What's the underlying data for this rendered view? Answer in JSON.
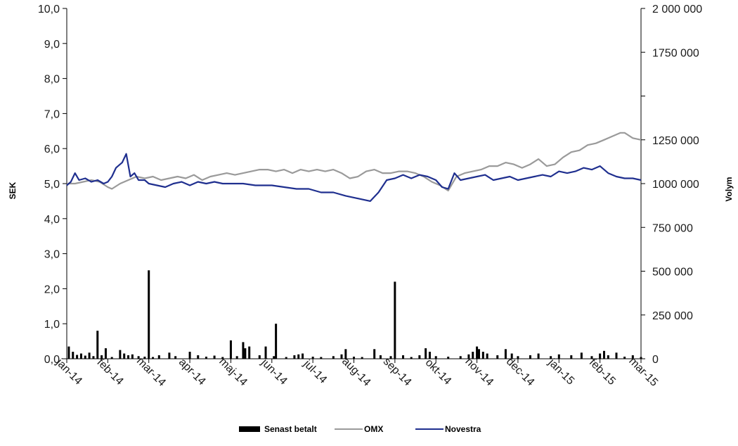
{
  "chart_data": {
    "type": "line",
    "title": "",
    "ylabel": "SEK",
    "y2label": "Volym",
    "ylim": [
      0,
      10
    ],
    "y2lim": [
      0,
      2000000
    ],
    "grid": false,
    "legend_position": "bottom",
    "x_ticks": [
      "jan-14",
      "feb-14",
      "mar-14",
      "apr-14",
      "maj-14",
      "jun-14",
      "jul-14",
      "aug-14",
      "sep-14",
      "okt-14",
      "nov-14",
      "dec-14",
      "jan-15",
      "feb-15",
      "mar-15"
    ],
    "y_ticks": [
      "0,0",
      "1,0",
      "2,0",
      "3,0",
      "4,0",
      "5,0",
      "6,0",
      "7,0",
      "8,0",
      "9,0",
      "10,0"
    ],
    "y2_ticks": [
      "0",
      "250 000",
      "500 000",
      "750 000",
      "1000 000",
      "1250 000",
      "1750 000",
      "2 000 000"
    ],
    "y2_tick_values": [
      0,
      250000,
      500000,
      750000,
      1000000,
      1250000,
      1750000,
      2000000
    ],
    "series": [
      {
        "name": "Novestra",
        "axis": "left",
        "color": "#1f2f8f",
        "points": [
          [
            0,
            4.95
          ],
          [
            0.1,
            5.05
          ],
          [
            0.2,
            5.3
          ],
          [
            0.3,
            5.1
          ],
          [
            0.45,
            5.15
          ],
          [
            0.6,
            5.05
          ],
          [
            0.75,
            5.1
          ],
          [
            0.9,
            5.0
          ],
          [
            1.0,
            5.05
          ],
          [
            1.1,
            5.2
          ],
          [
            1.2,
            5.45
          ],
          [
            1.35,
            5.6
          ],
          [
            1.45,
            5.85
          ],
          [
            1.55,
            5.2
          ],
          [
            1.65,
            5.3
          ],
          [
            1.75,
            5.1
          ],
          [
            1.9,
            5.1
          ],
          [
            2.0,
            5.0
          ],
          [
            2.2,
            4.95
          ],
          [
            2.4,
            4.9
          ],
          [
            2.6,
            5.0
          ],
          [
            2.8,
            5.05
          ],
          [
            3.0,
            4.95
          ],
          [
            3.2,
            5.05
          ],
          [
            3.4,
            5.0
          ],
          [
            3.6,
            5.05
          ],
          [
            3.8,
            5.0
          ],
          [
            4.0,
            5.0
          ],
          [
            4.3,
            5.0
          ],
          [
            4.6,
            4.95
          ],
          [
            5.0,
            4.95
          ],
          [
            5.3,
            4.9
          ],
          [
            5.6,
            4.85
          ],
          [
            5.9,
            4.85
          ],
          [
            6.2,
            4.75
          ],
          [
            6.5,
            4.75
          ],
          [
            6.8,
            4.65
          ],
          [
            7.0,
            4.6
          ],
          [
            7.2,
            4.55
          ],
          [
            7.4,
            4.5
          ],
          [
            7.6,
            4.75
          ],
          [
            7.8,
            5.1
          ],
          [
            8.0,
            5.15
          ],
          [
            8.2,
            5.25
          ],
          [
            8.4,
            5.15
          ],
          [
            8.6,
            5.25
          ],
          [
            8.8,
            5.2
          ],
          [
            9.0,
            5.1
          ],
          [
            9.15,
            4.9
          ],
          [
            9.3,
            4.85
          ],
          [
            9.45,
            5.3
          ],
          [
            9.6,
            5.1
          ],
          [
            9.8,
            5.15
          ],
          [
            10.0,
            5.2
          ],
          [
            10.2,
            5.25
          ],
          [
            10.4,
            5.1
          ],
          [
            10.6,
            5.15
          ],
          [
            10.8,
            5.2
          ],
          [
            11.0,
            5.1
          ],
          [
            11.2,
            5.15
          ],
          [
            11.4,
            5.2
          ],
          [
            11.6,
            5.25
          ],
          [
            11.8,
            5.2
          ],
          [
            12.0,
            5.35
          ],
          [
            12.2,
            5.3
          ],
          [
            12.4,
            5.35
          ],
          [
            12.6,
            5.45
          ],
          [
            12.8,
            5.4
          ],
          [
            13.0,
            5.5
          ],
          [
            13.2,
            5.3
          ],
          [
            13.4,
            5.2
          ],
          [
            13.6,
            5.15
          ],
          [
            13.8,
            5.15
          ],
          [
            14.0,
            5.1
          ]
        ]
      },
      {
        "name": "OMX",
        "axis": "left",
        "color": "#9a9a9a",
        "points": [
          [
            0,
            5.0
          ],
          [
            0.2,
            5.0
          ],
          [
            0.4,
            5.05
          ],
          [
            0.6,
            5.1
          ],
          [
            0.8,
            5.05
          ],
          [
            1.0,
            4.9
          ],
          [
            1.1,
            4.85
          ],
          [
            1.3,
            5.0
          ],
          [
            1.5,
            5.1
          ],
          [
            1.7,
            5.2
          ],
          [
            1.9,
            5.15
          ],
          [
            2.1,
            5.2
          ],
          [
            2.3,
            5.1
          ],
          [
            2.5,
            5.15
          ],
          [
            2.7,
            5.2
          ],
          [
            2.9,
            5.15
          ],
          [
            3.1,
            5.25
          ],
          [
            3.3,
            5.1
          ],
          [
            3.5,
            5.2
          ],
          [
            3.7,
            5.25
          ],
          [
            3.9,
            5.3
          ],
          [
            4.1,
            5.25
          ],
          [
            4.3,
            5.3
          ],
          [
            4.5,
            5.35
          ],
          [
            4.7,
            5.4
          ],
          [
            4.9,
            5.4
          ],
          [
            5.1,
            5.35
          ],
          [
            5.3,
            5.4
          ],
          [
            5.5,
            5.3
          ],
          [
            5.7,
            5.4
          ],
          [
            5.9,
            5.35
          ],
          [
            6.1,
            5.4
          ],
          [
            6.3,
            5.35
          ],
          [
            6.5,
            5.4
          ],
          [
            6.7,
            5.3
          ],
          [
            6.9,
            5.15
          ],
          [
            7.1,
            5.2
          ],
          [
            7.3,
            5.35
          ],
          [
            7.5,
            5.4
          ],
          [
            7.7,
            5.3
          ],
          [
            7.9,
            5.3
          ],
          [
            8.1,
            5.35
          ],
          [
            8.3,
            5.35
          ],
          [
            8.5,
            5.3
          ],
          [
            8.7,
            5.2
          ],
          [
            8.9,
            5.05
          ],
          [
            9.1,
            4.95
          ],
          [
            9.3,
            4.8
          ],
          [
            9.5,
            5.2
          ],
          [
            9.7,
            5.3
          ],
          [
            9.9,
            5.35
          ],
          [
            10.1,
            5.4
          ],
          [
            10.3,
            5.5
          ],
          [
            10.5,
            5.5
          ],
          [
            10.7,
            5.6
          ],
          [
            10.9,
            5.55
          ],
          [
            11.1,
            5.45
          ],
          [
            11.3,
            5.55
          ],
          [
            11.5,
            5.7
          ],
          [
            11.7,
            5.5
          ],
          [
            11.9,
            5.55
          ],
          [
            12.1,
            5.75
          ],
          [
            12.3,
            5.9
          ],
          [
            12.5,
            5.95
          ],
          [
            12.7,
            6.1
          ],
          [
            12.9,
            6.15
          ],
          [
            13.1,
            6.25
          ],
          [
            13.3,
            6.35
          ],
          [
            13.5,
            6.45
          ],
          [
            13.6,
            6.45
          ],
          [
            13.8,
            6.3
          ],
          [
            14.0,
            6.25
          ]
        ]
      }
    ],
    "volume_series": {
      "name": "Senast betalt",
      "axis": "right",
      "color": "#000000",
      "points": [
        [
          0.05,
          70000
        ],
        [
          0.15,
          40000
        ],
        [
          0.25,
          22000
        ],
        [
          0.35,
          30000
        ],
        [
          0.45,
          18000
        ],
        [
          0.55,
          35000
        ],
        [
          0.65,
          15000
        ],
        [
          0.75,
          160000
        ],
        [
          0.85,
          20000
        ],
        [
          0.95,
          60000
        ],
        [
          1.1,
          10000
        ],
        [
          1.3,
          50000
        ],
        [
          1.4,
          30000
        ],
        [
          1.5,
          20000
        ],
        [
          1.6,
          25000
        ],
        [
          1.75,
          15000
        ],
        [
          1.9,
          12000
        ],
        [
          2.0,
          505000
        ],
        [
          2.1,
          10000
        ],
        [
          2.25,
          20000
        ],
        [
          2.5,
          35000
        ],
        [
          2.65,
          15000
        ],
        [
          3.0,
          40000
        ],
        [
          3.2,
          20000
        ],
        [
          3.4,
          12000
        ],
        [
          3.6,
          18000
        ],
        [
          3.8,
          10000
        ],
        [
          4.0,
          105000
        ],
        [
          4.15,
          15000
        ],
        [
          4.3,
          95000
        ],
        [
          4.35,
          60000
        ],
        [
          4.45,
          70000
        ],
        [
          4.7,
          20000
        ],
        [
          4.85,
          70000
        ],
        [
          5.05,
          15000
        ],
        [
          5.1,
          200000
        ],
        [
          5.35,
          10000
        ],
        [
          5.55,
          20000
        ],
        [
          5.65,
          25000
        ],
        [
          5.75,
          30000
        ],
        [
          6.0,
          12000
        ],
        [
          6.2,
          10000
        ],
        [
          6.5,
          15000
        ],
        [
          6.7,
          25000
        ],
        [
          6.8,
          55000
        ],
        [
          7.0,
          12000
        ],
        [
          7.2,
          10000
        ],
        [
          7.5,
          55000
        ],
        [
          7.65,
          20000
        ],
        [
          7.9,
          15000
        ],
        [
          8.0,
          440000
        ],
        [
          8.2,
          20000
        ],
        [
          8.4,
          10000
        ],
        [
          8.6,
          20000
        ],
        [
          8.75,
          60000
        ],
        [
          8.85,
          40000
        ],
        [
          9.0,
          15000
        ],
        [
          9.3,
          12000
        ],
        [
          9.6,
          15000
        ],
        [
          9.8,
          25000
        ],
        [
          9.9,
          40000
        ],
        [
          10.0,
          70000
        ],
        [
          10.05,
          55000
        ],
        [
          10.15,
          40000
        ],
        [
          10.25,
          30000
        ],
        [
          10.5,
          20000
        ],
        [
          10.7,
          55000
        ],
        [
          10.85,
          30000
        ],
        [
          11.0,
          15000
        ],
        [
          11.3,
          20000
        ],
        [
          11.5,
          30000
        ],
        [
          11.8,
          15000
        ],
        [
          12.0,
          25000
        ],
        [
          12.3,
          20000
        ],
        [
          12.55,
          35000
        ],
        [
          12.8,
          15000
        ],
        [
          13.0,
          30000
        ],
        [
          13.1,
          45000
        ],
        [
          13.2,
          20000
        ],
        [
          13.4,
          35000
        ],
        [
          13.6,
          12000
        ],
        [
          13.8,
          20000
        ],
        [
          14.0,
          10000
        ]
      ]
    },
    "legend": [
      "Senast betalt",
      "OMX",
      "Novestra"
    ]
  }
}
